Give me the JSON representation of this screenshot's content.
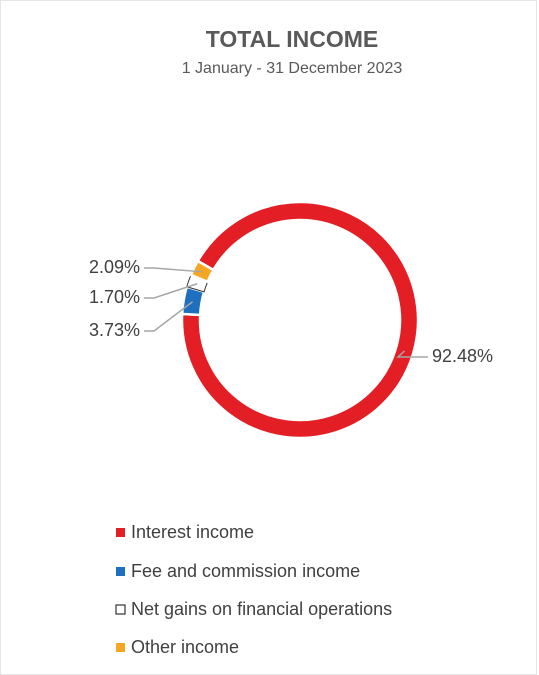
{
  "chart_data": {
    "type": "donut",
    "title": "TOTAL INCOME",
    "subtitle": "1 January - 31 December 2023",
    "categories": [
      "Interest income",
      "Fee and commission income",
      "Net gains on financial operations",
      "Other income"
    ],
    "values": [
      92.48,
      3.73,
      1.7,
      2.09
    ],
    "value_labels": [
      "92.48%",
      "3.73%",
      "1.70%",
      "2.09%"
    ],
    "colors": [
      "#e31e24",
      "#1f6fbf",
      "#ffffff",
      "#f5a623"
    ],
    "legend": "bottom"
  }
}
